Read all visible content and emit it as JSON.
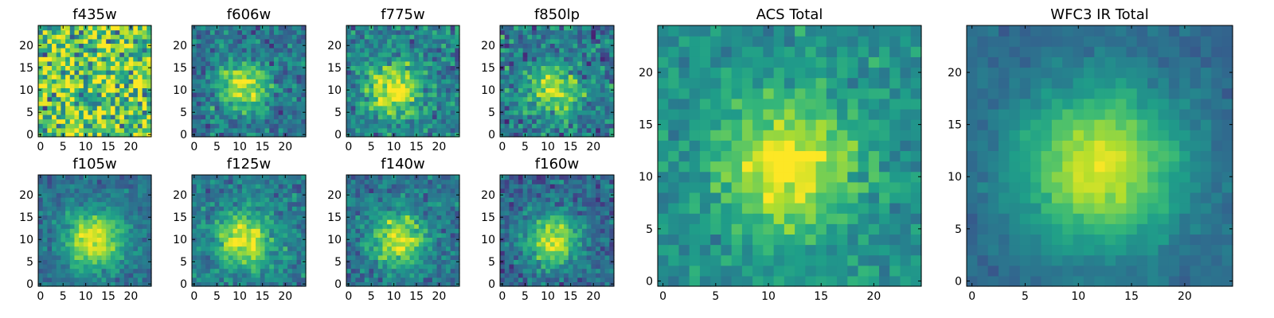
{
  "chart_data": [
    {
      "type": "heatmap",
      "title": "f435w",
      "grid_size": 25,
      "peak": [
        12,
        10
      ],
      "spread": 9.0,
      "noise": 0.45,
      "peak_strength": 0.15,
      "background": 0.66,
      "xlim": [
        -0.5,
        24.5
      ],
      "ylim": [
        -0.5,
        24.5
      ],
      "xticks": [
        0,
        5,
        10,
        15,
        20
      ],
      "yticks": [
        0,
        5,
        10,
        15,
        20
      ],
      "colormap": "viridis",
      "origin": "lower"
    },
    {
      "type": "heatmap",
      "title": "f606w",
      "grid_size": 25,
      "peak": [
        11,
        11
      ],
      "spread": 3.8,
      "noise": 0.22,
      "peak_strength": 0.6,
      "background": 0.38,
      "xlim": [
        -0.5,
        24.5
      ],
      "ylim": [
        -0.5,
        24.5
      ],
      "xticks": [
        0,
        5,
        10,
        15,
        20
      ],
      "yticks": [
        0,
        5,
        10,
        15,
        20
      ],
      "colormap": "viridis",
      "origin": "lower"
    },
    {
      "type": "heatmap",
      "title": "f775w",
      "grid_size": 25,
      "peak": [
        10,
        10
      ],
      "spread": 4.2,
      "noise": 0.22,
      "peak_strength": 0.58,
      "background": 0.42,
      "xlim": [
        -0.5,
        24.5
      ],
      "ylim": [
        -0.5,
        24.5
      ],
      "xticks": [
        0,
        5,
        10,
        15,
        20
      ],
      "yticks": [
        0,
        5,
        10,
        15,
        20
      ],
      "colormap": "viridis",
      "origin": "lower"
    },
    {
      "type": "heatmap",
      "title": "f850lp",
      "grid_size": 25,
      "peak": [
        11,
        10
      ],
      "spread": 4.0,
      "noise": 0.26,
      "peak_strength": 0.5,
      "background": 0.4,
      "xlim": [
        -0.5,
        24.5
      ],
      "ylim": [
        -0.5,
        24.5
      ],
      "xticks": [
        0,
        5,
        10,
        15,
        20
      ],
      "yticks": [
        0,
        5,
        10,
        15,
        20
      ],
      "colormap": "viridis",
      "origin": "lower"
    },
    {
      "type": "heatmap",
      "title": "f105w",
      "grid_size": 25,
      "peak": [
        12,
        10
      ],
      "spread": 4.6,
      "noise": 0.14,
      "peak_strength": 0.62,
      "background": 0.36,
      "xlim": [
        -0.5,
        24.5
      ],
      "ylim": [
        -0.5,
        24.5
      ],
      "xticks": [
        0,
        5,
        10,
        15,
        20
      ],
      "yticks": [
        0,
        5,
        10,
        15,
        20
      ],
      "colormap": "viridis",
      "origin": "lower"
    },
    {
      "type": "heatmap",
      "title": "f125w",
      "grid_size": 25,
      "peak": [
        11,
        10
      ],
      "spread": 4.4,
      "noise": 0.18,
      "peak_strength": 0.58,
      "background": 0.4,
      "xlim": [
        -0.5,
        24.5
      ],
      "ylim": [
        -0.5,
        24.5
      ],
      "xticks": [
        0,
        5,
        10,
        15,
        20
      ],
      "yticks": [
        0,
        5,
        10,
        15,
        20
      ],
      "colormap": "viridis",
      "origin": "lower"
    },
    {
      "type": "heatmap",
      "title": "f140w",
      "grid_size": 25,
      "peak": [
        11,
        10
      ],
      "spread": 4.4,
      "noise": 0.18,
      "peak_strength": 0.58,
      "background": 0.37,
      "xlim": [
        -0.5,
        24.5
      ],
      "ylim": [
        -0.5,
        24.5
      ],
      "xticks": [
        0,
        5,
        10,
        15,
        20
      ],
      "yticks": [
        0,
        5,
        10,
        15,
        20
      ],
      "colormap": "viridis",
      "origin": "lower"
    },
    {
      "type": "heatmap",
      "title": "f160w",
      "grid_size": 25,
      "peak": [
        11,
        10
      ],
      "spread": 4.2,
      "noise": 0.18,
      "peak_strength": 0.62,
      "background": 0.32,
      "xlim": [
        -0.5,
        24.5
      ],
      "ylim": [
        -0.5,
        24.5
      ],
      "xticks": [
        0,
        5,
        10,
        15,
        20
      ],
      "yticks": [
        0,
        5,
        10,
        15,
        20
      ],
      "colormap": "viridis",
      "origin": "lower"
    },
    {
      "type": "heatmap",
      "title": "ACS Total",
      "grid_size": 25,
      "peak": [
        12,
        11
      ],
      "spread": 4.4,
      "noise": 0.15,
      "peak_strength": 0.5,
      "background": 0.5,
      "xlim": [
        -0.5,
        24.5
      ],
      "ylim": [
        -0.5,
        24.5
      ],
      "xticks": [
        0,
        5,
        10,
        15,
        20
      ],
      "yticks": [
        0,
        5,
        10,
        15,
        20
      ],
      "colormap": "viridis",
      "origin": "lower"
    },
    {
      "type": "heatmap",
      "title": "WFC3 IR Total",
      "grid_size": 25,
      "peak": [
        12,
        11
      ],
      "spread": 5.2,
      "noise": 0.07,
      "peak_strength": 0.62,
      "background": 0.34,
      "xlim": [
        -0.5,
        24.5
      ],
      "ylim": [
        -0.5,
        24.5
      ],
      "xticks": [
        0,
        5,
        10,
        15,
        20
      ],
      "yticks": [
        0,
        5,
        10,
        15,
        20
      ],
      "colormap": "viridis",
      "origin": "lower"
    }
  ]
}
